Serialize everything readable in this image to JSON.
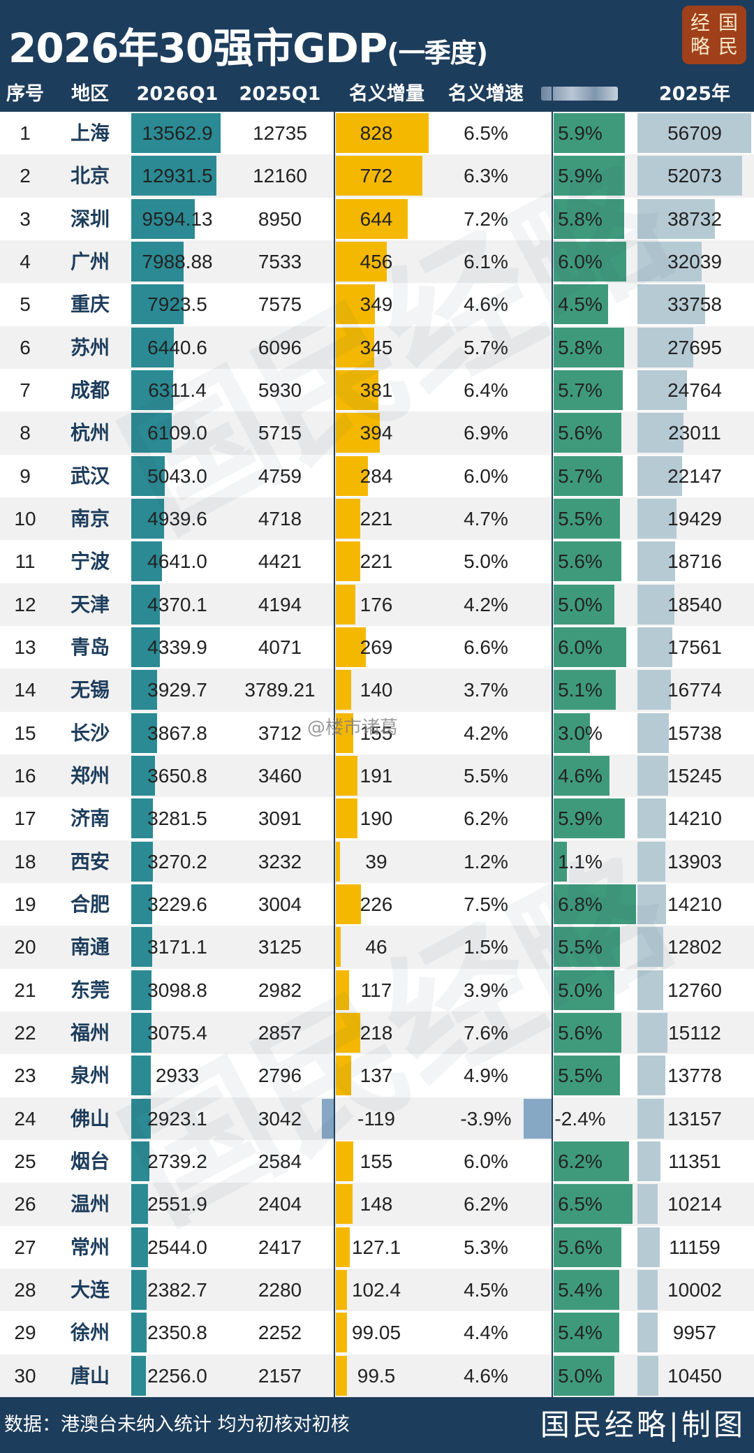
{
  "header": {
    "title_main": "2026年30强市GDP",
    "title_sub": "(一季度)"
  },
  "seal": {
    "chars": [
      "经",
      "国",
      "略",
      "民"
    ]
  },
  "colors": {
    "navy": "#1d3d5c",
    "teal": "#2b8a93",
    "yellow": "#f5b800",
    "green": "#3f9a7c",
    "lightblue": "#b6cad4",
    "negative": "#86a8c4",
    "stripe": "#f1f1f1"
  },
  "chart_data": {
    "type": "table",
    "columns": [
      "序号",
      "地区",
      "2026Q1",
      "2025Q1",
      "名义增量",
      "名义增速",
      "",
      "2025年"
    ],
    "rows": [
      {
        "rank": "1",
        "city": "上海",
        "q1_2026": "13562.9",
        "q1_2025": "12735",
        "nominal_increase": "828",
        "nominal_growth": "6.5%",
        "real_growth": "5.9%",
        "gdp_2025": "56709"
      },
      {
        "rank": "2",
        "city": "北京",
        "q1_2026": "12931.5",
        "q1_2025": "12160",
        "nominal_increase": "772",
        "nominal_growth": "6.3%",
        "real_growth": "5.9%",
        "gdp_2025": "52073"
      },
      {
        "rank": "3",
        "city": "深圳",
        "q1_2026": "9594.13",
        "q1_2025": "8950",
        "nominal_increase": "644",
        "nominal_growth": "7.2%",
        "real_growth": "5.8%",
        "gdp_2025": "38732"
      },
      {
        "rank": "4",
        "city": "广州",
        "q1_2026": "7988.88",
        "q1_2025": "7533",
        "nominal_increase": "456",
        "nominal_growth": "6.1%",
        "real_growth": "6.0%",
        "gdp_2025": "32039"
      },
      {
        "rank": "5",
        "city": "重庆",
        "q1_2026": "7923.5",
        "q1_2025": "7575",
        "nominal_increase": "349",
        "nominal_growth": "4.6%",
        "real_growth": "4.5%",
        "gdp_2025": "33758"
      },
      {
        "rank": "6",
        "city": "苏州",
        "q1_2026": "6440.6",
        "q1_2025": "6096",
        "nominal_increase": "345",
        "nominal_growth": "5.7%",
        "real_growth": "5.8%",
        "gdp_2025": "27695"
      },
      {
        "rank": "7",
        "city": "成都",
        "q1_2026": "6311.4",
        "q1_2025": "5930",
        "nominal_increase": "381",
        "nominal_growth": "6.4%",
        "real_growth": "5.7%",
        "gdp_2025": "24764"
      },
      {
        "rank": "8",
        "city": "杭州",
        "q1_2026": "6109.0",
        "q1_2025": "5715",
        "nominal_increase": "394",
        "nominal_growth": "6.9%",
        "real_growth": "5.6%",
        "gdp_2025": "23011"
      },
      {
        "rank": "9",
        "city": "武汉",
        "q1_2026": "5043.0",
        "q1_2025": "4759",
        "nominal_increase": "284",
        "nominal_growth": "6.0%",
        "real_growth": "5.7%",
        "gdp_2025": "22147"
      },
      {
        "rank": "10",
        "city": "南京",
        "q1_2026": "4939.6",
        "q1_2025": "4718",
        "nominal_increase": "221",
        "nominal_growth": "4.7%",
        "real_growth": "5.5%",
        "gdp_2025": "19429"
      },
      {
        "rank": "11",
        "city": "宁波",
        "q1_2026": "4641.0",
        "q1_2025": "4421",
        "nominal_increase": "221",
        "nominal_growth": "5.0%",
        "real_growth": "5.6%",
        "gdp_2025": "18716"
      },
      {
        "rank": "12",
        "city": "天津",
        "q1_2026": "4370.1",
        "q1_2025": "4194",
        "nominal_increase": "176",
        "nominal_growth": "4.2%",
        "real_growth": "5.0%",
        "gdp_2025": "18540"
      },
      {
        "rank": "13",
        "city": "青岛",
        "q1_2026": "4339.9",
        "q1_2025": "4071",
        "nominal_increase": "269",
        "nominal_growth": "6.6%",
        "real_growth": "6.0%",
        "gdp_2025": "17561"
      },
      {
        "rank": "14",
        "city": "无锡",
        "q1_2026": "3929.7",
        "q1_2025": "3789.21",
        "nominal_increase": "140",
        "nominal_growth": "3.7%",
        "real_growth": "5.1%",
        "gdp_2025": "16774"
      },
      {
        "rank": "15",
        "city": "长沙",
        "q1_2026": "3867.8",
        "q1_2025": "3712",
        "nominal_increase": "155",
        "nominal_growth": "4.2%",
        "real_growth": "3.0%",
        "gdp_2025": "15738"
      },
      {
        "rank": "16",
        "city": "郑州",
        "q1_2026": "3650.8",
        "q1_2025": "3460",
        "nominal_increase": "191",
        "nominal_growth": "5.5%",
        "real_growth": "4.6%",
        "gdp_2025": "15245"
      },
      {
        "rank": "17",
        "city": "济南",
        "q1_2026": "3281.5",
        "q1_2025": "3091",
        "nominal_increase": "190",
        "nominal_growth": "6.2%",
        "real_growth": "5.9%",
        "gdp_2025": "14210"
      },
      {
        "rank": "18",
        "city": "西安",
        "q1_2026": "3270.2",
        "q1_2025": "3232",
        "nominal_increase": "39",
        "nominal_growth": "1.2%",
        "real_growth": "1.1%",
        "gdp_2025": "13903"
      },
      {
        "rank": "19",
        "city": "合肥",
        "q1_2026": "3229.6",
        "q1_2025": "3004",
        "nominal_increase": "226",
        "nominal_growth": "7.5%",
        "real_growth": "6.8%",
        "gdp_2025": "14210"
      },
      {
        "rank": "20",
        "city": "南通",
        "q1_2026": "3171.1",
        "q1_2025": "3125",
        "nominal_increase": "46",
        "nominal_growth": "1.5%",
        "real_growth": "5.5%",
        "gdp_2025": "12802"
      },
      {
        "rank": "21",
        "city": "东莞",
        "q1_2026": "3098.8",
        "q1_2025": "2982",
        "nominal_increase": "117",
        "nominal_growth": "3.9%",
        "real_growth": "5.0%",
        "gdp_2025": "12760"
      },
      {
        "rank": "22",
        "city": "福州",
        "q1_2026": "3075.4",
        "q1_2025": "2857",
        "nominal_increase": "218",
        "nominal_growth": "7.6%",
        "real_growth": "5.6%",
        "gdp_2025": "15112"
      },
      {
        "rank": "23",
        "city": "泉州",
        "q1_2026": "2933",
        "q1_2025": "2796",
        "nominal_increase": "137",
        "nominal_growth": "4.9%",
        "real_growth": "5.5%",
        "gdp_2025": "13778"
      },
      {
        "rank": "24",
        "city": "佛山",
        "q1_2026": "2923.1",
        "q1_2025": "3042",
        "nominal_increase": "-119",
        "nominal_growth": "-3.9%",
        "real_growth": "-2.4%",
        "gdp_2025": "13157"
      },
      {
        "rank": "25",
        "city": "烟台",
        "q1_2026": "2739.2",
        "q1_2025": "2584",
        "nominal_increase": "155",
        "nominal_growth": "6.0%",
        "real_growth": "6.2%",
        "gdp_2025": "11351"
      },
      {
        "rank": "26",
        "city": "温州",
        "q1_2026": "2551.9",
        "q1_2025": "2404",
        "nominal_increase": "148",
        "nominal_growth": "6.2%",
        "real_growth": "6.5%",
        "gdp_2025": "10214"
      },
      {
        "rank": "27",
        "city": "常州",
        "q1_2026": "2544.0",
        "q1_2025": "2417",
        "nominal_increase": "127.1",
        "nominal_growth": "5.3%",
        "real_growth": "5.6%",
        "gdp_2025": "11159"
      },
      {
        "rank": "28",
        "city": "大连",
        "q1_2026": "2382.7",
        "q1_2025": "2280",
        "nominal_increase": "102.4",
        "nominal_growth": "4.5%",
        "real_growth": "5.4%",
        "gdp_2025": "10002"
      },
      {
        "rank": "29",
        "city": "徐州",
        "q1_2026": "2350.8",
        "q1_2025": "2252",
        "nominal_increase": "99.05",
        "nominal_growth": "4.4%",
        "real_growth": "5.4%",
        "gdp_2025": "9957"
      },
      {
        "rank": "30",
        "city": "唐山",
        "q1_2026": "2256.0",
        "q1_2025": "2157",
        "nominal_increase": "99.5",
        "nominal_growth": "4.6%",
        "real_growth": "5.0%",
        "gdp_2025": "10450"
      }
    ]
  },
  "watermark": {
    "text": "国民经略",
    "weibo": "@楼市诸葛"
  },
  "footer": {
    "note": "数据：港澳台未纳入统计 均为初核对初核",
    "brand": "国民经略|制图"
  }
}
